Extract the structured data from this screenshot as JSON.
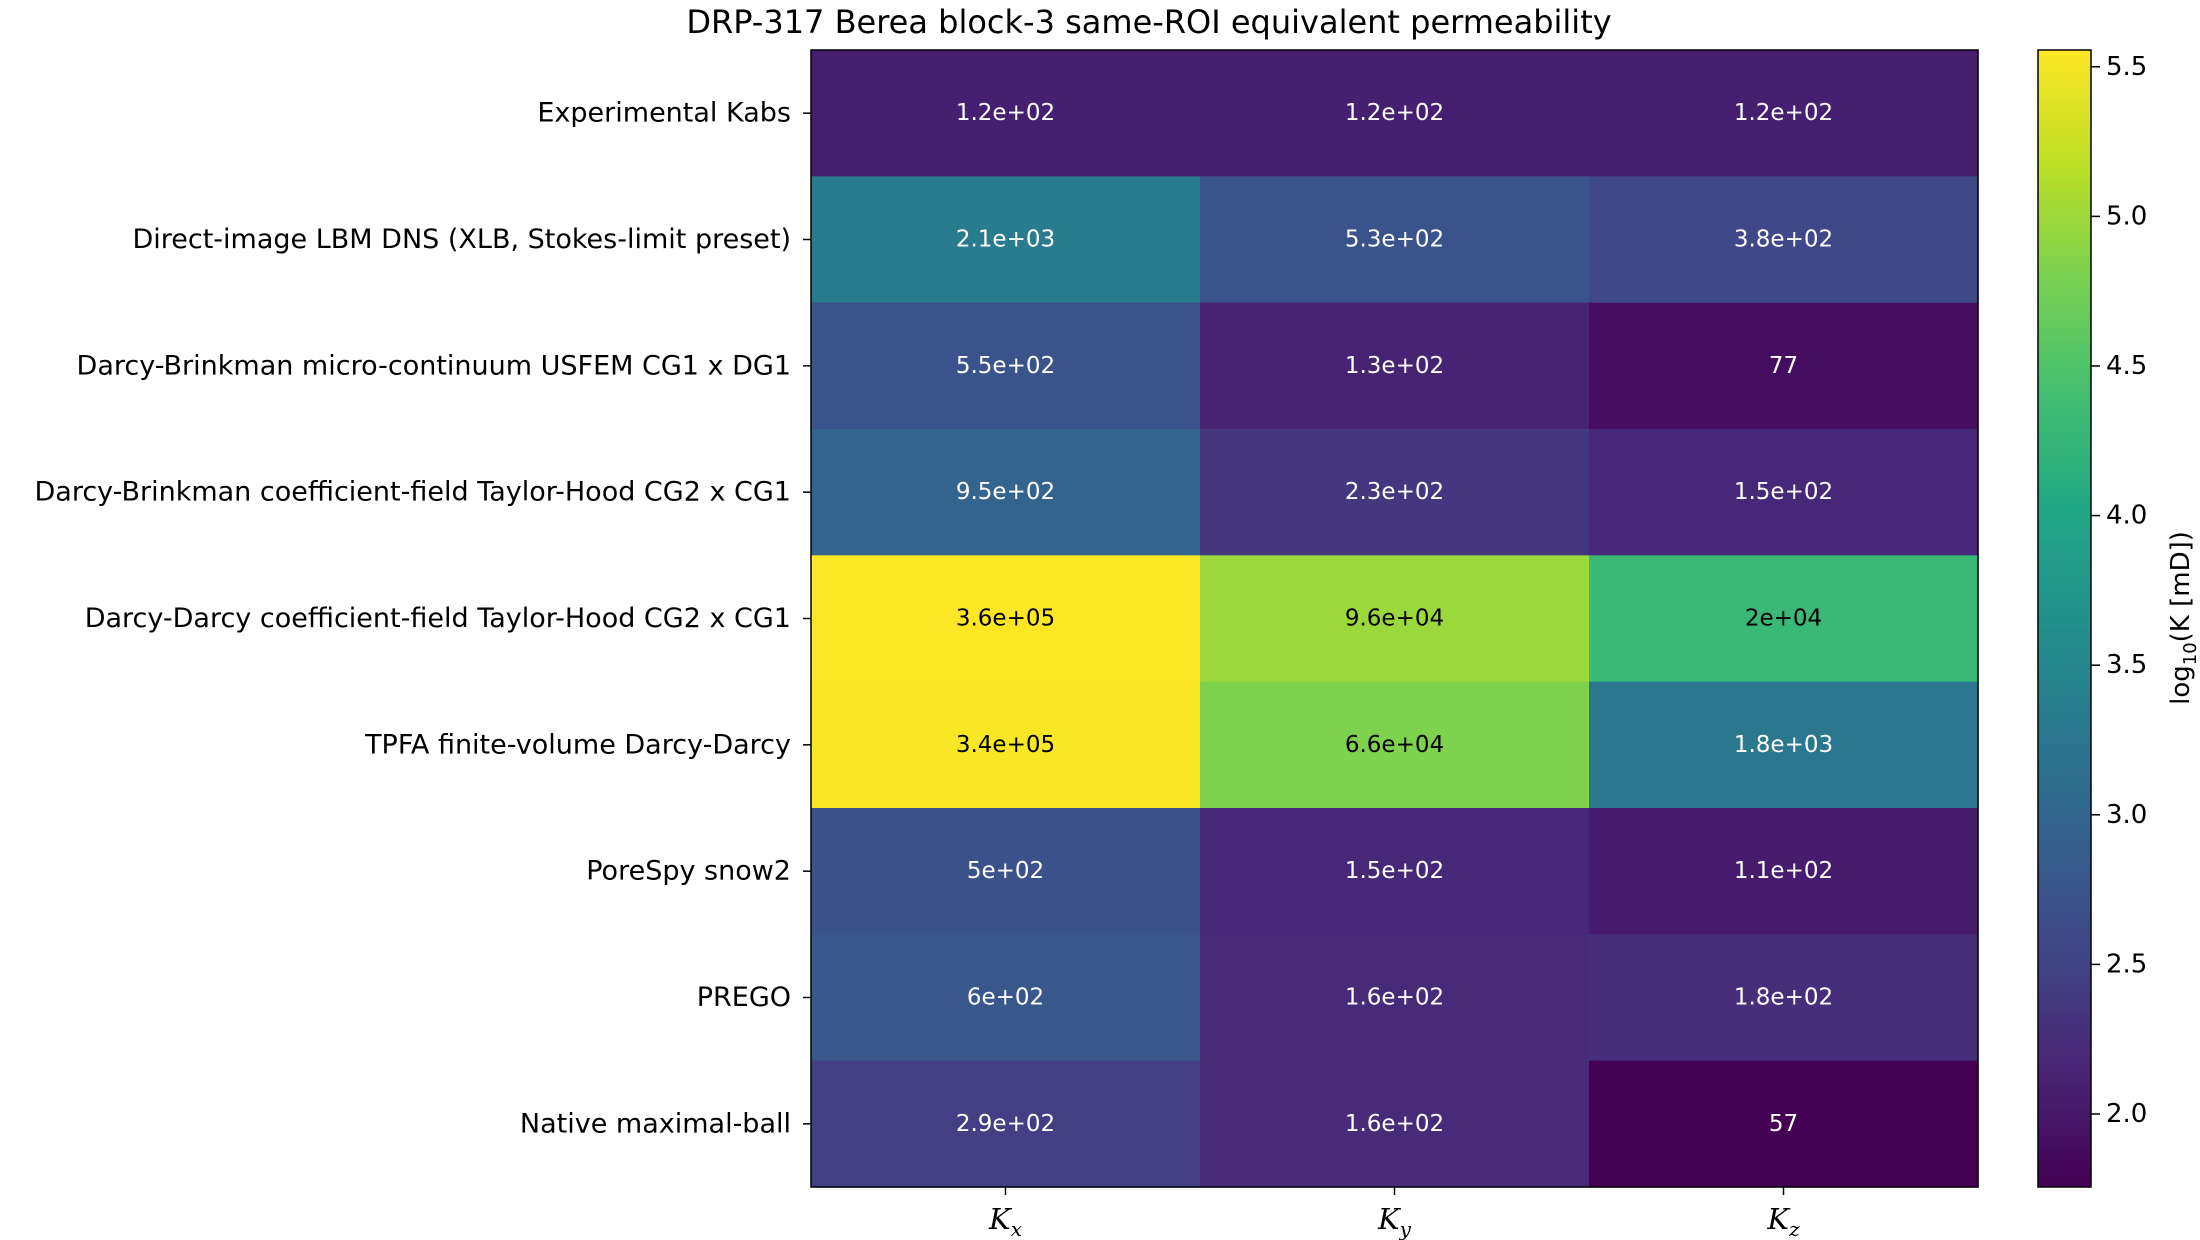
{
  "chart_data": {
    "type": "heatmap",
    "title": "DRP-317 Berea block-3 same-ROI equivalent permeability",
    "rows": [
      "Experimental Kabs",
      "Direct-image LBM DNS (XLB, Stokes-limit preset)",
      "Darcy-Brinkman micro-continuum USFEM CG1 x DG1",
      "Darcy-Brinkman coefficient-field Taylor-Hood CG2 x CG1",
      "Darcy-Darcy coefficient-field Taylor-Hood CG2 x CG1",
      "TPFA finite-volume Darcy-Darcy",
      "PoreSpy snow2",
      "PREGO",
      "Native maximal-ball"
    ],
    "columns": [
      {
        "main": "K",
        "sub": "x"
      },
      {
        "main": "K",
        "sub": "y"
      },
      {
        "main": "K",
        "sub": "z"
      }
    ],
    "values": [
      [
        120,
        120,
        120
      ],
      [
        2100,
        530,
        380
      ],
      [
        550,
        130,
        77
      ],
      [
        950,
        230,
        150
      ],
      [
        360000,
        96000,
        20000
      ],
      [
        340000,
        66000,
        1800
      ],
      [
        500,
        150,
        110
      ],
      [
        600,
        160,
        180
      ],
      [
        290,
        160,
        57
      ]
    ],
    "cell_labels": [
      [
        "1.2e+02",
        "1.2e+02",
        "1.2e+02"
      ],
      [
        "2.1e+03",
        "5.3e+02",
        "3.8e+02"
      ],
      [
        "5.5e+02",
        "1.3e+02",
        "77"
      ],
      [
        "9.5e+02",
        "2.3e+02",
        "1.5e+02"
      ],
      [
        "3.6e+05",
        "9.6e+04",
        "2e+04"
      ],
      [
        "3.4e+05",
        "6.6e+04",
        "1.8e+03"
      ],
      [
        "5e+02",
        "1.5e+02",
        "1.1e+02"
      ],
      [
        "6e+02",
        "1.6e+02",
        "1.8e+02"
      ],
      [
        "2.9e+02",
        "1.6e+02",
        "57"
      ]
    ],
    "colormap": "viridis",
    "scale": "log10",
    "colorbar": {
      "range": [
        1.756,
        5.556
      ],
      "ticks": [
        2.0,
        2.5,
        3.0,
        3.5,
        4.0,
        4.5,
        5.0,
        5.5
      ],
      "tick_labels": [
        "2.0",
        "2.5",
        "3.0",
        "3.5",
        "4.0",
        "4.5",
        "5.0",
        "5.5"
      ],
      "label_prefix": "log",
      "label_sub": "10",
      "label_expr": "(K [mD])",
      "placement": "right"
    },
    "grid": false
  }
}
